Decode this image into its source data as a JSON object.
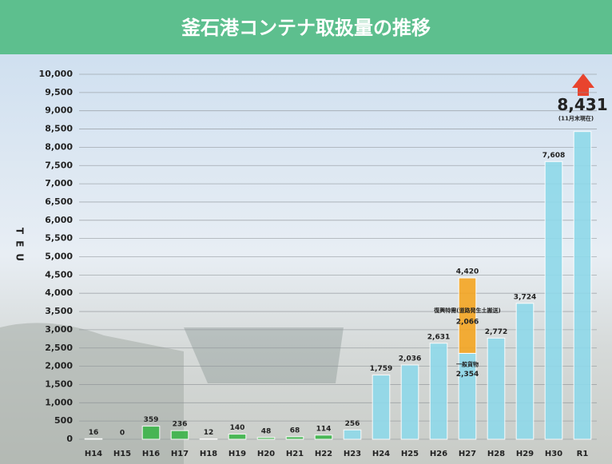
{
  "chart_data": {
    "type": "bar",
    "title": "釜石港コンテナ取扱量の推移",
    "y_label": "TEU",
    "categories": [
      "H14",
      "H15",
      "H16",
      "H17",
      "H18",
      "H19",
      "H20",
      "H21",
      "H22",
      "H23",
      "H24",
      "H25",
      "H26",
      "H27",
      "H28",
      "H29",
      "H30",
      "R1"
    ],
    "series": [
      {
        "name": "一般貨物",
        "colors": [
          "#3cb54a",
          "#3cb54a",
          "#3cb54a",
          "#3cb54a",
          "#3cb54a",
          "#3cb54a",
          "#3cb54a",
          "#3cb54a",
          "#3cb54a",
          "#8fd9ea",
          "#8fd9ea",
          "#8fd9ea",
          "#8fd9ea",
          "#8fd9ea",
          "#8fd9ea",
          "#8fd9ea",
          "#8fd9ea",
          "#8fd9ea"
        ],
        "values": [
          16,
          0,
          359,
          236,
          12,
          140,
          48,
          68,
          114,
          256,
          1759,
          2036,
          2631,
          2354,
          2772,
          3724,
          7608,
          8431
        ],
        "value_labels": [
          "16",
          "0",
          "359",
          "236",
          "12",
          "140",
          "48",
          "68",
          "114",
          "256",
          "1,759",
          "2,036",
          "2,631",
          "2,354",
          "2,772",
          "3,724",
          "7,608",
          "8,431"
        ]
      },
      {
        "name": "復興特需(道路発生土搬送)",
        "color": "#f5a623",
        "values": [
          null,
          null,
          null,
          null,
          null,
          null,
          null,
          null,
          null,
          null,
          null,
          null,
          null,
          2066,
          null,
          null,
          null,
          null
        ],
        "value_labels": [
          null,
          null,
          null,
          null,
          null,
          null,
          null,
          null,
          null,
          null,
          null,
          null,
          null,
          "2,066",
          null,
          null,
          null,
          null
        ]
      }
    ],
    "annotations": [
      {
        "category": "H27",
        "value": 4420,
        "label": "4,420"
      },
      {
        "category": "R1",
        "text": "(11月末現在)"
      }
    ],
    "ylim": [
      0,
      10000
    ],
    "yticks": [
      0,
      {
        "value": 500,
        "label": "500"
      },
      {
        "value": 1000,
        "label": "1,000"
      },
      {
        "value": 1500,
        "label": "1,500"
      },
      {
        "value": 2000,
        "label": "2,000"
      },
      {
        "value": 2500,
        "label": "2,500"
      },
      {
        "value": 3000,
        "label": "3,000"
      },
      {
        "value": 3500,
        "label": "3,500"
      },
      {
        "value": 4000,
        "label": "4,000"
      },
      {
        "value": 4500,
        "label": "4,500"
      },
      {
        "value": 5000,
        "label": "5,000"
      },
      {
        "value": 5500,
        "label": "5,500"
      },
      {
        "value": 6000,
        "label": "6,000"
      },
      {
        "value": 6500,
        "label": "6,500"
      },
      {
        "value": 7000,
        "label": "7,000"
      },
      {
        "value": 7500,
        "label": "7,500"
      },
      {
        "value": 8000,
        "label": "8,000"
      },
      {
        "value": 8500,
        "label": "8,500"
      },
      {
        "value": 9000,
        "label": "9,000"
      },
      {
        "value": 9500,
        "label": "9,500"
      },
      {
        "value": 10000,
        "label": "10,000"
      }
    ],
    "grid": true
  }
}
